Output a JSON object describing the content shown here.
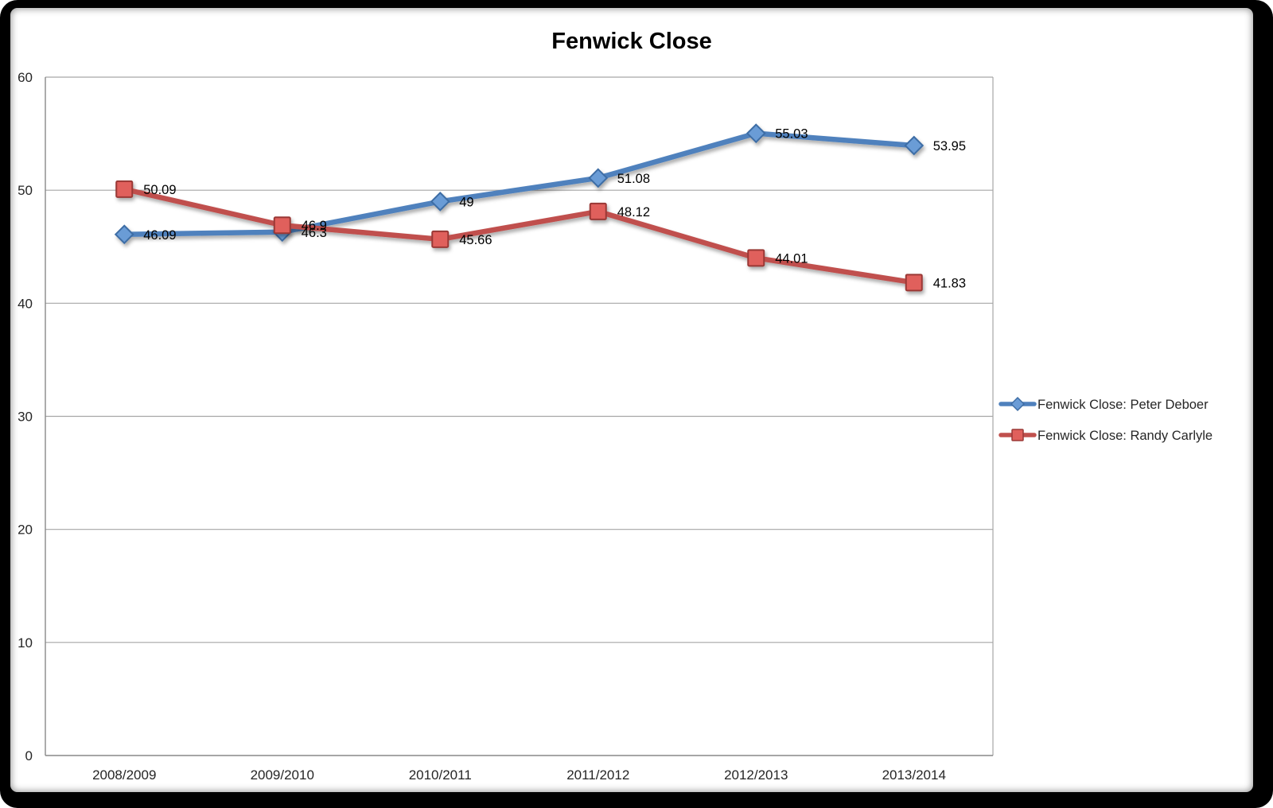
{
  "chart_data": {
    "type": "line",
    "title": "Fenwick Close",
    "categories": [
      "2008/2009",
      "2009/2010",
      "2010/2011",
      "2011/2012",
      "2012/2013",
      "2013/2014"
    ],
    "series": [
      {
        "id": "peter-deboer",
        "name": "Fenwick Close: Peter Deboer",
        "values": [
          46.09,
          46.3,
          49,
          51.08,
          55.03,
          53.95
        ],
        "point_labels": [
          "46.09",
          "46.3",
          "49",
          "51.08",
          "55.03",
          "53.95"
        ],
        "marker": "diamond",
        "line_color": "#4F81BD",
        "marker_fill": "#6B9CD6",
        "marker_stroke": "#3E6DA5"
      },
      {
        "id": "randy-carlyle",
        "name": "Fenwick Close: Randy Carlyle",
        "values": [
          50.09,
          46.9,
          45.66,
          48.12,
          44.01,
          41.83
        ],
        "point_labels": [
          "50.09",
          "46.9",
          "45.66",
          "48.12",
          "44.01",
          "41.83"
        ],
        "marker": "square",
        "line_color": "#C0504D",
        "marker_fill": "#E0605C",
        "marker_stroke": "#9A3936"
      }
    ],
    "ylim": [
      0,
      60
    ],
    "yticks": [
      0,
      10,
      20,
      30,
      40,
      50,
      60
    ],
    "grid": true,
    "legend_position": "right"
  },
  "colors": {
    "frame": "#000000",
    "background": "#ffffff",
    "gridline": "#A6A6A6",
    "axis": "#898989",
    "axis_text": "#262626",
    "data_label_text": "#000000",
    "title_text": "#000000"
  }
}
